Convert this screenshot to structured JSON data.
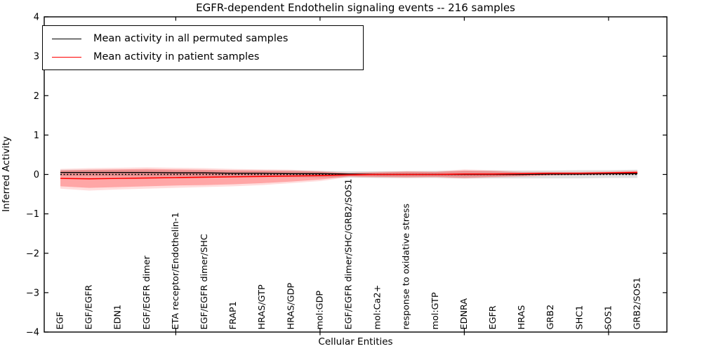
{
  "legend": {
    "items": [
      {
        "label": "Mean activity in all permuted samples",
        "color": "#000000"
      },
      {
        "label": "Mean activity in patient samples",
        "color": "#ff0000"
      }
    ]
  },
  "chart_data": {
    "type": "line",
    "title": "EGFR-dependent Endothelin signaling events -- 216 samples",
    "xlabel": "Cellular Entities",
    "ylabel": "Inferred Activity",
    "ylim": [
      -4,
      4
    ],
    "yticks": [
      4,
      3,
      2,
      1,
      0,
      -1,
      -2,
      -3,
      -4
    ],
    "xtick_indices": [
      4,
      9,
      14,
      19
    ],
    "grid": false,
    "legend_position": "upper left",
    "zero_line": {
      "y": 0,
      "style": "dotted",
      "color": "#000000"
    },
    "categories": [
      "EGF",
      "EGF/EGFR",
      "EDN1",
      "EGF/EGFR dimer",
      "ETA receptor/Endothelin-1",
      "EGF/EGFR dimer/SHC",
      "FRAP1",
      "HRAS/GTP",
      "HRAS/GDP",
      "mol:GDP",
      "EGF/EGFR dimer/SHC/GRB2/SOS1",
      "mol:Ca2+",
      "response to oxidative stress",
      "mol:GTP",
      "EDNRA",
      "EGFR",
      "HRAS",
      "GRB2",
      "SHC1",
      "SOS1",
      "GRB2/SOS1"
    ],
    "series": [
      {
        "name": "Mean activity in all permuted samples",
        "color": "#000000",
        "width": 1.4,
        "values": [
          0.05,
          0.05,
          0.05,
          0.05,
          0.04,
          0.04,
          0.03,
          0.03,
          0.02,
          0.02,
          0.01,
          0.0,
          0.0,
          0.0,
          0.0,
          0.0,
          0.0,
          0.01,
          0.01,
          0.02,
          0.02
        ]
      },
      {
        "name": "Mean activity in patient samples",
        "color": "#ff0000",
        "width": 1.6,
        "values": [
          -0.1,
          -0.11,
          -0.1,
          -0.09,
          -0.08,
          -0.07,
          -0.06,
          -0.05,
          -0.04,
          -0.03,
          -0.01,
          0.0,
          0.0,
          0.0,
          0.01,
          0.01,
          0.02,
          0.03,
          0.03,
          0.04,
          0.05
        ]
      }
    ],
    "bands": [
      {
        "id": "permuted-std-band",
        "name": "Std of activity in all permuted samples",
        "color": "rgba(0,0,0,0.12)",
        "upper": [
          0.12,
          0.12,
          0.12,
          0.12,
          0.11,
          0.11,
          0.1,
          0.1,
          0.1,
          0.09,
          0.08,
          0.08,
          0.08,
          0.09,
          0.09,
          0.1,
          0.1,
          0.1,
          0.11,
          0.11,
          0.12
        ],
        "lower": [
          -0.04,
          -0.04,
          -0.05,
          -0.05,
          -0.05,
          -0.06,
          -0.06,
          -0.07,
          -0.07,
          -0.08,
          -0.08,
          -0.09,
          -0.09,
          -0.09,
          -0.1,
          -0.1,
          -0.1,
          -0.1,
          -0.1,
          -0.09,
          -0.09
        ]
      },
      {
        "id": "patient-std-band-outer",
        "name": "Std of activity in patient samples (outer)",
        "color": "rgba(255,0,0,0.13)",
        "upper": [
          0.14,
          0.16,
          0.17,
          0.18,
          0.17,
          0.16,
          0.14,
          0.13,
          0.12,
          0.09,
          0.05,
          0.07,
          0.09,
          0.08,
          0.13,
          0.11,
          0.07,
          0.07,
          0.07,
          0.08,
          0.1
        ],
        "lower": [
          -0.36,
          -0.41,
          -0.38,
          -0.36,
          -0.34,
          -0.32,
          -0.3,
          -0.27,
          -0.22,
          -0.17,
          -0.07,
          -0.08,
          -0.09,
          -0.08,
          -0.11,
          -0.08,
          -0.06,
          -0.03,
          -0.02,
          -0.01,
          0.0
        ]
      },
      {
        "id": "patient-std-band",
        "name": "Std of activity in patient samples",
        "color": "rgba(255,0,0,0.25)",
        "upper": [
          0.1,
          0.12,
          0.13,
          0.14,
          0.13,
          0.12,
          0.11,
          0.1,
          0.09,
          0.07,
          0.03,
          0.05,
          0.07,
          0.06,
          0.1,
          0.08,
          0.05,
          0.05,
          0.05,
          0.06,
          0.08
        ],
        "lower": [
          -0.3,
          -0.34,
          -0.32,
          -0.3,
          -0.28,
          -0.27,
          -0.25,
          -0.22,
          -0.18,
          -0.13,
          -0.05,
          -0.06,
          -0.07,
          -0.06,
          -0.08,
          -0.06,
          -0.04,
          -0.02,
          -0.01,
          0.0,
          0.01
        ]
      }
    ]
  }
}
